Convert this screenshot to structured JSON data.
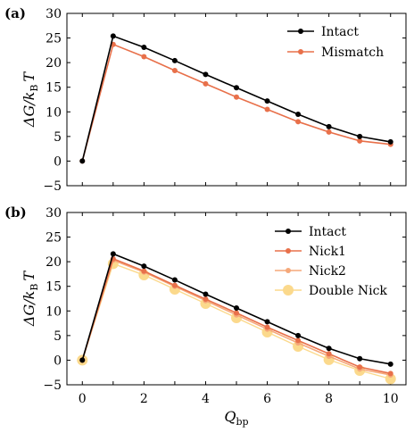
{
  "chart_data": [
    {
      "type": "line",
      "panel_label": "(a)",
      "x": [
        0,
        1,
        2,
        3,
        4,
        5,
        6,
        7,
        8,
        9,
        10
      ],
      "xlabel": "",
      "ylabel": "ΔG/k_B T",
      "ylabel_main": "ΔG/k",
      "ylabel_sub": "B",
      "ylabel_tail": "T",
      "xlim": [
        -0.5,
        10.5
      ],
      "ylim": [
        -5,
        30
      ],
      "xticks": [],
      "yticks": [
        -5,
        0,
        5,
        10,
        15,
        20,
        25,
        30
      ],
      "grid": false,
      "legend_position": "top-right",
      "series": [
        {
          "name": "Intact",
          "color": "#000000",
          "values": [
            0,
            25.4,
            23.1,
            20.4,
            17.6,
            14.9,
            12.2,
            9.5,
            7.0,
            5.0,
            3.9
          ]
        },
        {
          "name": "Mismatch",
          "color": "#e8704a",
          "values": [
            0,
            23.7,
            21.2,
            18.4,
            15.7,
            13.0,
            10.5,
            8.0,
            5.9,
            4.1,
            3.4
          ]
        }
      ]
    },
    {
      "type": "line",
      "panel_label": "(b)",
      "x": [
        0,
        1,
        2,
        3,
        4,
        5,
        6,
        7,
        8,
        9,
        10
      ],
      "xlabel": "Q_bp",
      "xlabel_main": "Q",
      "xlabel_sub": "bp",
      "ylabel": "ΔG/k_B T",
      "ylabel_main": "ΔG/k",
      "ylabel_sub": "B",
      "ylabel_tail": "T",
      "xlim": [
        -0.5,
        10.5
      ],
      "ylim": [
        -5,
        30
      ],
      "xticks": [
        0,
        2,
        4,
        6,
        8,
        10
      ],
      "yticks": [
        -5,
        0,
        5,
        10,
        15,
        20,
        25,
        30
      ],
      "grid": false,
      "legend_position": "top-right",
      "series": [
        {
          "name": "Intact",
          "color": "#000000",
          "values": [
            0,
            21.6,
            19.1,
            16.3,
            13.4,
            10.6,
            7.8,
            5.0,
            2.4,
            0.3,
            -0.8
          ]
        },
        {
          "name": "Nick1",
          "color": "#e8704a",
          "values": [
            0,
            20.6,
            18.1,
            15.2,
            12.4,
            9.6,
            6.7,
            4.0,
            1.3,
            -1.4,
            -2.7
          ]
        },
        {
          "name": "Nick2",
          "color": "#f5a87a",
          "values": [
            0,
            20.3,
            17.9,
            15.0,
            12.1,
            9.2,
            6.3,
            3.5,
            0.8,
            -1.8,
            -3.0
          ]
        },
        {
          "name": "Double Nick",
          "color": "#fbd98c",
          "values": [
            0,
            19.6,
            17.3,
            14.4,
            11.5,
            8.6,
            5.7,
            2.8,
            0.1,
            -2.1,
            -3.8
          ]
        }
      ]
    }
  ]
}
